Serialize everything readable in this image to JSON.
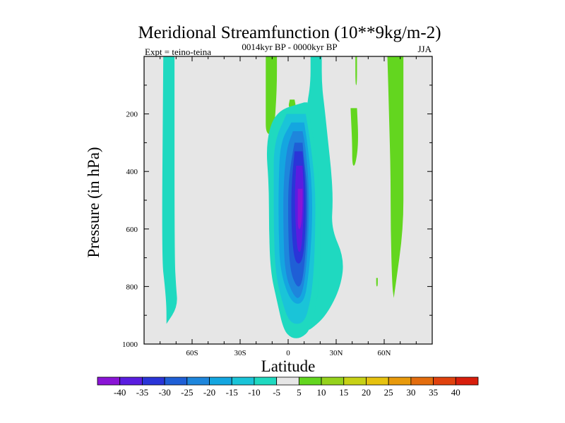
{
  "chart_data": {
    "type": "contour",
    "title": "Meridional Streamfunction (10**9kg/m-2)",
    "subtitle": "0014kyr BP - 0000kyr BP",
    "left_label": "Expt = teino-teina",
    "right_label": "JJA",
    "xlabel": "Latitude",
    "ylabel": "Pressure (in hPa)",
    "xlim": [
      -90,
      90
    ],
    "ylim": [
      0,
      1000
    ],
    "y_inverted": true,
    "x_ticks": [
      {
        "value": -60,
        "label": "60S"
      },
      {
        "value": -30,
        "label": "30S"
      },
      {
        "value": 0,
        "label": "0"
      },
      {
        "value": 30,
        "label": "30N"
      },
      {
        "value": 60,
        "label": "60N"
      }
    ],
    "y_ticks": [
      {
        "value": 200,
        "label": "200"
      },
      {
        "value": 400,
        "label": "400"
      },
      {
        "value": 600,
        "label": "600"
      },
      {
        "value": 800,
        "label": "800"
      },
      {
        "value": 1000,
        "label": "1000"
      }
    ],
    "levels": [
      -40,
      -35,
      -30,
      -25,
      -20,
      -15,
      -10,
      -5,
      5,
      10,
      15,
      20,
      25,
      30,
      35,
      40
    ],
    "level_labels": [
      "-40",
      "-35",
      "-30",
      "-25",
      "-20",
      "-15",
      "-10",
      "-5",
      "5",
      "10",
      "15",
      "20",
      "25",
      "30",
      "35",
      "40"
    ],
    "colorbar_colors": [
      "#8a14d6",
      "#5a1de0",
      "#2a35d8",
      "#1f5fd6",
      "#1e86dc",
      "#14a6e0",
      "#1ac4d8",
      "#1fd9c0",
      "#e6e6e6",
      "#63d61f",
      "#95d21c",
      "#c7d116",
      "#e6c20f",
      "#e89a0c",
      "#e36d0e",
      "#e0420e",
      "#d81e0c"
    ],
    "background_color": "#e6e6e6",
    "features": [
      {
        "name": "south-polar-column",
        "value": -7.5,
        "type": "band",
        "profile": [
          [
            0,
            -78,
            -71
          ],
          [
            700,
            -79,
            -71
          ],
          [
            800,
            -77,
            -70
          ],
          [
            870,
            -76,
            -69
          ],
          [
            930,
            -76,
            -76
          ]
        ]
      },
      {
        "name": "north-upper-band-1",
        "value": 7.5,
        "type": "band",
        "profile": [
          [
            0,
            -14,
            -7
          ],
          [
            100,
            -14,
            -7
          ],
          [
            200,
            -14,
            -8
          ],
          [
            270,
            -14,
            -9
          ]
        ]
      },
      {
        "name": "north-upper-band-2",
        "value": 7.5,
        "type": "band",
        "profile": [
          [
            150,
            1,
            4
          ],
          [
            180,
            0,
            5
          ]
        ]
      },
      {
        "name": "north-column-1",
        "value": 7.5,
        "type": "band",
        "profile": [
          [
            270,
            19,
            24
          ],
          [
            350,
            18,
            24
          ],
          [
            450,
            19,
            22
          ]
        ]
      },
      {
        "name": "north-column-2",
        "value": 7.5,
        "type": "band",
        "profile": [
          [
            440,
            22,
            27
          ],
          [
            580,
            21,
            27
          ],
          [
            660,
            23,
            26
          ]
        ]
      },
      {
        "name": "north-column-3",
        "value": 7.5,
        "type": "band",
        "profile": [
          [
            180,
            39,
            43
          ],
          [
            300,
            40,
            44
          ],
          [
            380,
            40,
            42
          ]
        ]
      },
      {
        "name": "north-column-4",
        "value": 7.5,
        "type": "band",
        "profile": [
          [
            0,
            42,
            43
          ],
          [
            100,
            42,
            43
          ]
        ]
      },
      {
        "name": "north-column-5",
        "value": 7.5,
        "type": "band",
        "profile": [
          [
            0,
            62,
            72
          ],
          [
            200,
            63,
            72
          ],
          [
            400,
            64,
            72
          ],
          [
            600,
            64,
            72
          ],
          [
            800,
            65,
            67
          ],
          [
            840,
            66,
            66
          ]
        ]
      },
      {
        "name": "north-spot",
        "value": 7.5,
        "type": "band",
        "profile": [
          [
            770,
            55,
            56
          ],
          [
            800,
            55,
            56
          ]
        ]
      },
      {
        "name": "cell-edge-north",
        "value": -7.5,
        "type": "band",
        "profile": [
          [
            0,
            14,
            21
          ],
          [
            100,
            14,
            21
          ],
          [
            190,
            11,
            23
          ],
          [
            300,
            16,
            25
          ],
          [
            400,
            14,
            27
          ],
          [
            500,
            16,
            28
          ],
          [
            600,
            17,
            27
          ],
          [
            700,
            17,
            35
          ],
          [
            800,
            17,
            33
          ],
          [
            900,
            13,
            24
          ],
          [
            950,
            12,
            14
          ]
        ]
      },
      {
        "name": "hadley-cell",
        "value": -45,
        "type": "cell",
        "center": [
          7,
          520
        ],
        "levels": [
          {
            "value": -7.5,
            "profile": [
              [
                160,
                10,
                12
              ],
              [
                190,
                -8,
                13
              ],
              [
                300,
                -14,
                16
              ],
              [
                450,
                -12,
                20
              ],
              [
                600,
                -12,
                20
              ],
              [
                750,
                -11,
                20
              ],
              [
                850,
                -7,
                18
              ],
              [
                950,
                -3,
                14
              ],
              [
                980,
                2,
                8
              ]
            ]
          },
          {
            "value": -12.5,
            "profile": [
              [
                200,
                -1,
                11
              ],
              [
                300,
                -9,
                14
              ],
              [
                450,
                -9,
                17
              ],
              [
                600,
                -9,
                17
              ],
              [
                750,
                -8,
                16
              ],
              [
                850,
                -4,
                14
              ],
              [
                930,
                1,
                10
              ]
            ]
          },
          {
            "value": -17.5,
            "profile": [
              [
                230,
                2,
                10
              ],
              [
                300,
                -5,
                12
              ],
              [
                450,
                -6,
                15
              ],
              [
                600,
                -6,
                15
              ],
              [
                750,
                -5,
                13
              ],
              [
                860,
                2,
                10
              ]
            ]
          },
          {
            "value": -22.5,
            "profile": [
              [
                260,
                3,
                9
              ],
              [
                320,
                -1,
                11
              ],
              [
                450,
                -3,
                13
              ],
              [
                600,
                -3,
                13
              ],
              [
                760,
                -2,
                11
              ],
              [
                840,
                4,
                8
              ]
            ]
          },
          {
            "value": -27.5,
            "profile": [
              [
                300,
                4,
                9
              ],
              [
                360,
                2,
                10
              ],
              [
                450,
                0,
                12
              ],
              [
                600,
                0,
                12
              ],
              [
                740,
                1,
                10
              ],
              [
                800,
                5,
                8
              ]
            ]
          },
          {
            "value": -32.5,
            "profile": [
              [
                330,
                4,
                9
              ],
              [
                450,
                2,
                11
              ],
              [
                600,
                2,
                11
              ],
              [
                720,
                4,
                9
              ]
            ]
          },
          {
            "value": -37.5,
            "profile": [
              [
                380,
                5,
                9
              ],
              [
                500,
                4,
                10
              ],
              [
                620,
                5,
                9
              ],
              [
                680,
                6,
                8
              ]
            ]
          },
          {
            "value": -42.5,
            "profile": [
              [
                460,
                6,
                9
              ],
              [
                530,
                6,
                9
              ],
              [
                600,
                6,
                8
              ]
            ]
          }
        ]
      }
    ]
  }
}
